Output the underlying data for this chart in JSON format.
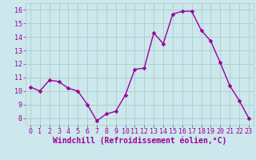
{
  "x": [
    0,
    1,
    2,
    3,
    4,
    5,
    6,
    7,
    8,
    9,
    10,
    11,
    12,
    13,
    14,
    15,
    16,
    17,
    18,
    19,
    20,
    21,
    22,
    23
  ],
  "y": [
    10.3,
    10.0,
    10.8,
    10.7,
    10.2,
    10.0,
    9.0,
    7.8,
    8.3,
    8.5,
    9.7,
    11.6,
    11.7,
    14.3,
    13.5,
    15.7,
    15.9,
    15.9,
    14.5,
    13.7,
    12.1,
    10.4,
    9.3,
    8.0
  ],
  "line_color": "#9b009b",
  "marker_color": "#9b009b",
  "bg_color": "#cce8ec",
  "grid_color": "#aacccc",
  "xlabel": "Windchill (Refroidissement éolien,°C)",
  "xlabel_color": "#9b009b",
  "tick_label_color": "#9b009b",
  "ylim": [
    7.5,
    16.5
  ],
  "xlim": [
    -0.5,
    23.5
  ],
  "yticks": [
    8,
    9,
    10,
    11,
    12,
    13,
    14,
    15,
    16
  ],
  "xticks": [
    0,
    1,
    2,
    3,
    4,
    5,
    6,
    7,
    8,
    9,
    10,
    11,
    12,
    13,
    14,
    15,
    16,
    17,
    18,
    19,
    20,
    21,
    22,
    23
  ],
  "tick_fontsize": 6.0,
  "xlabel_fontsize": 7.0,
  "marker_size": 2.5,
  "line_width": 1.0
}
